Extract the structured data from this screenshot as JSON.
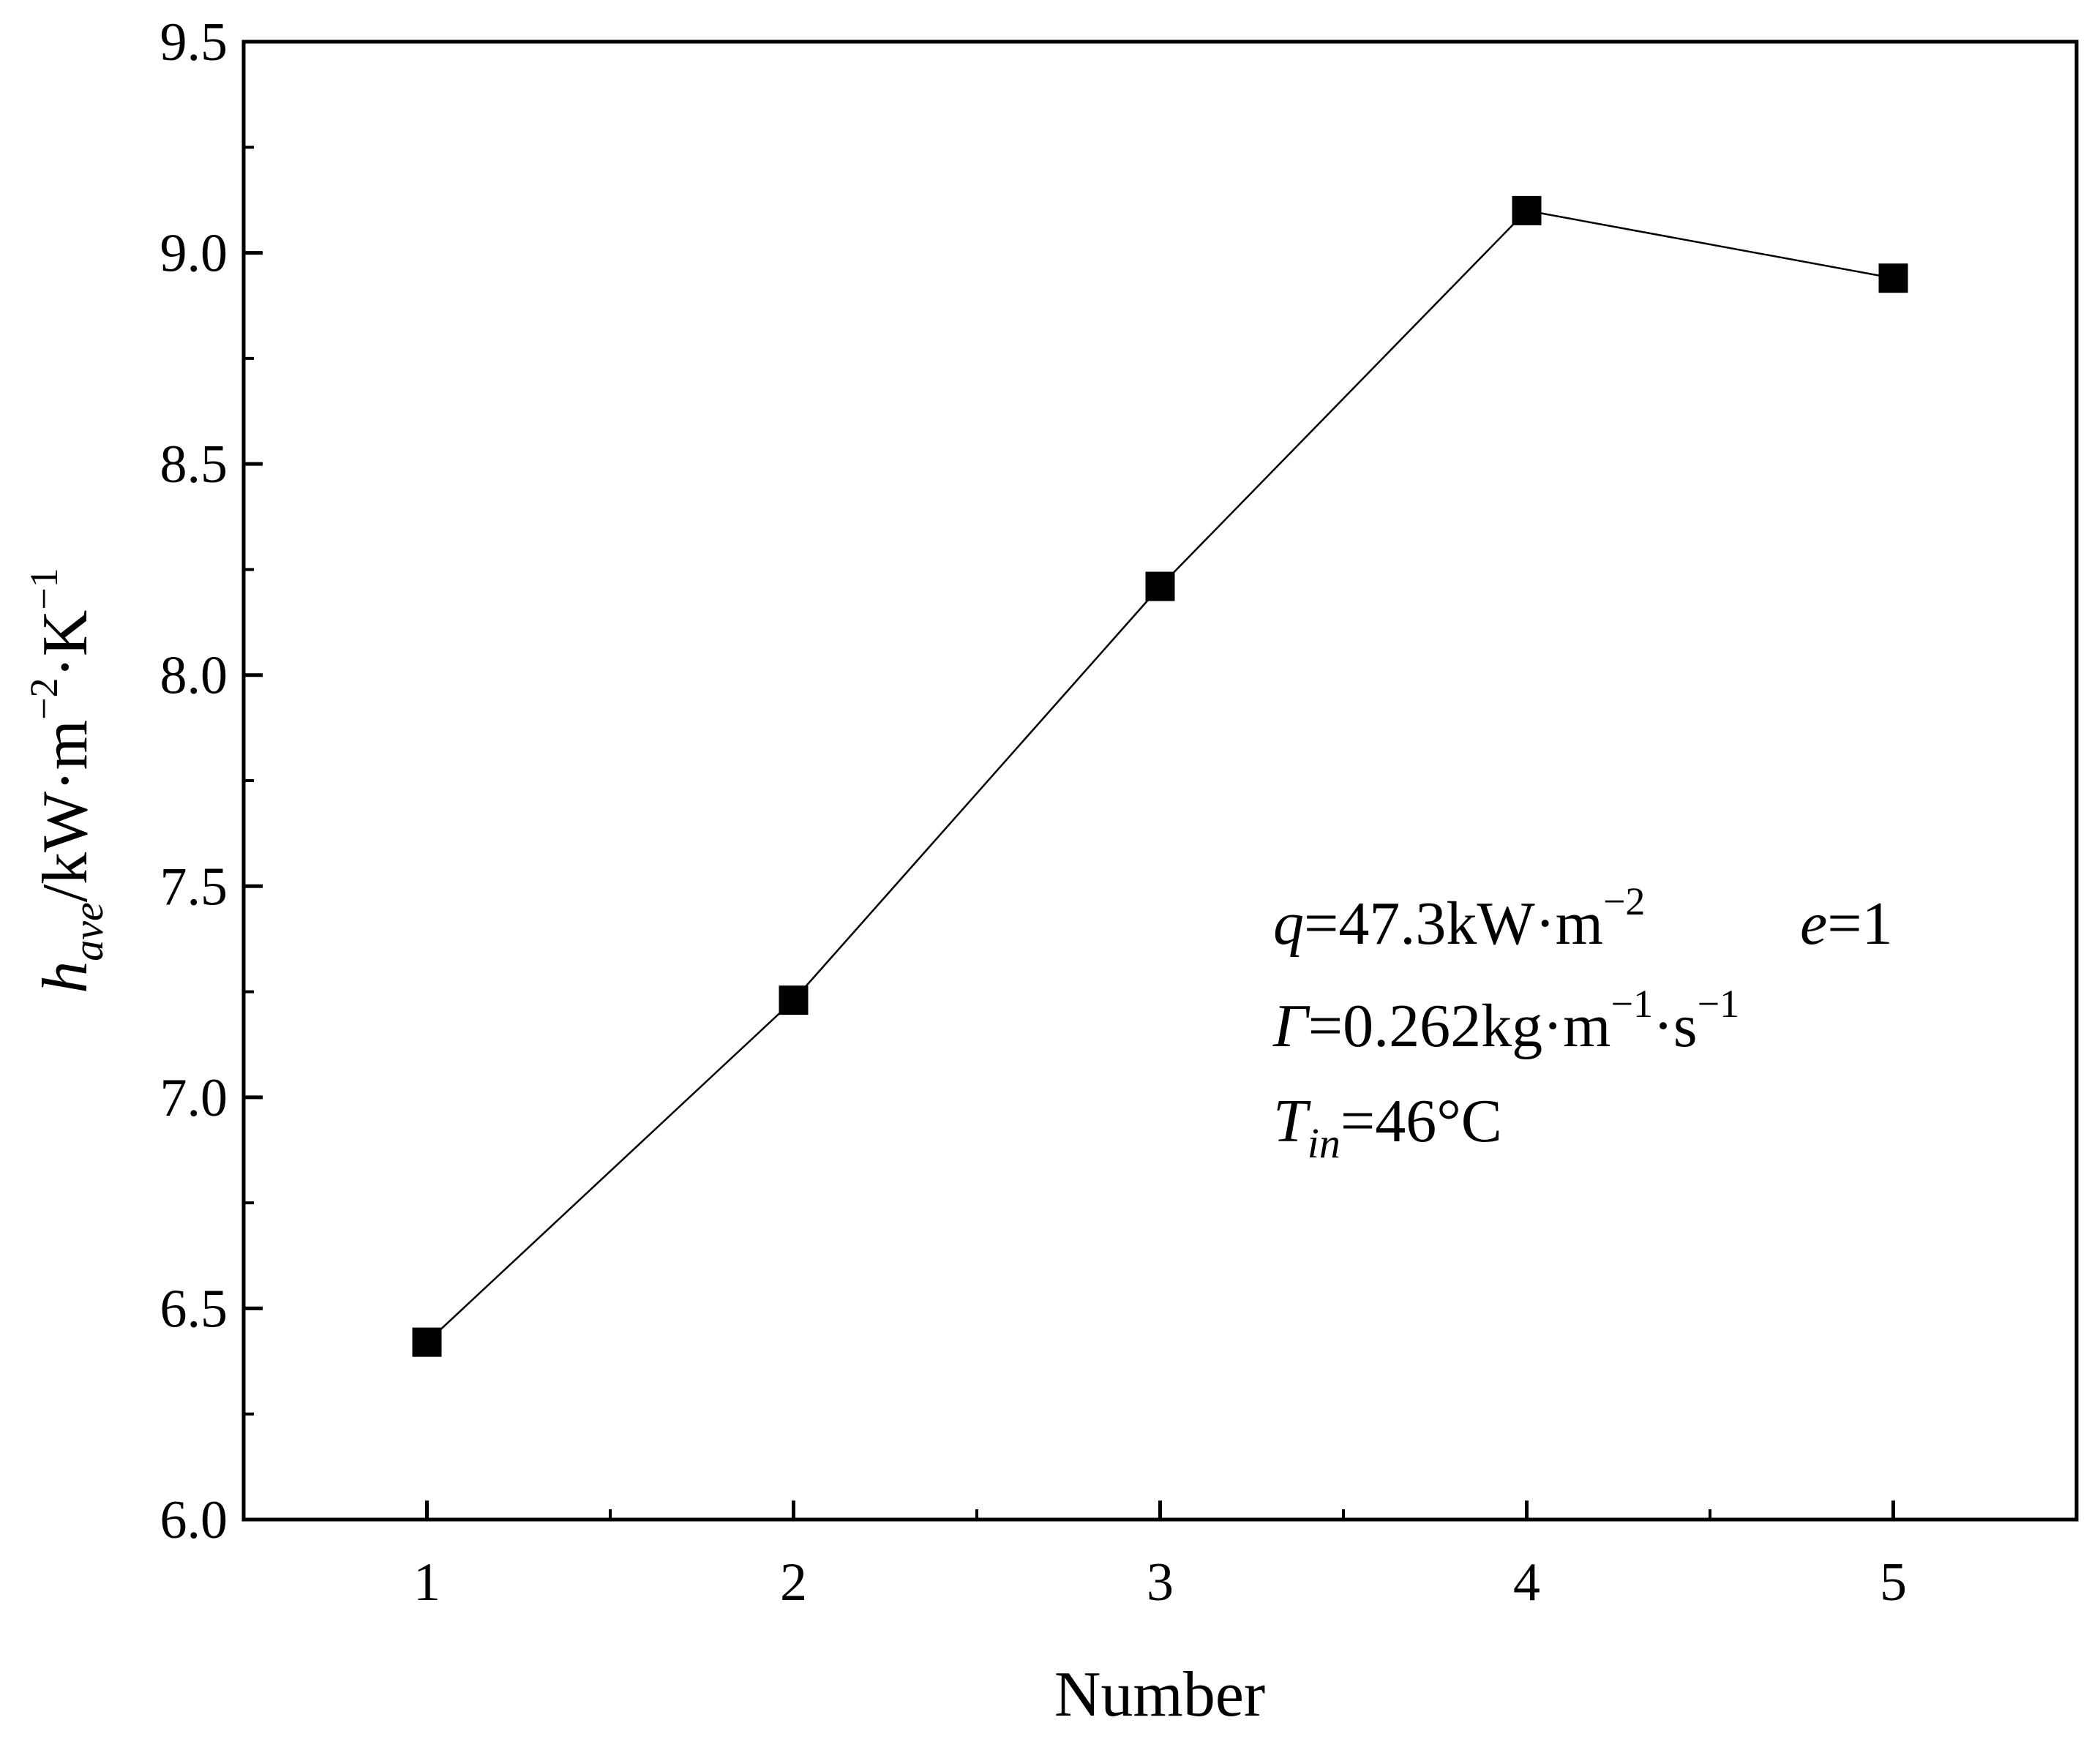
{
  "chart_data": {
    "type": "line",
    "title": "",
    "xlabel": "Number",
    "ylabel": {
      "main": "h",
      "subscript": "ave",
      "unit_parts": [
        "/kW·m",
        "−2",
        "·K",
        "−1"
      ]
    },
    "x": [
      1,
      2,
      3,
      4,
      5
    ],
    "xlim": [
      0.5,
      5.5
    ],
    "ylim": [
      6.0,
      9.5
    ],
    "xticks": [
      "1",
      "2",
      "3",
      "4",
      "5"
    ],
    "yticks": [
      "6.0",
      "6.5",
      "7.0",
      "7.5",
      "8.0",
      "8.5",
      "9.0",
      "9.5"
    ],
    "series": [
      {
        "values": [
          6.42,
          7.23,
          8.21,
          9.1,
          8.94
        ],
        "marker": "square",
        "color": "#000000"
      }
    ],
    "grid": false,
    "legend": "none",
    "annotations": {
      "line1": {
        "q": "q",
        "q_rest": "=47.3kW·m",
        "q_sup": "−2",
        "e": "e",
        "e_rest": "=1"
      },
      "line2": {
        "gamma": "Γ",
        "rest": "=0.262kg·m",
        "sup1": "−1",
        "mid": "·s",
        "sup2": "−1"
      },
      "line3": {
        "T": "T",
        "sub": "in",
        "rest": "=46°C"
      }
    }
  }
}
